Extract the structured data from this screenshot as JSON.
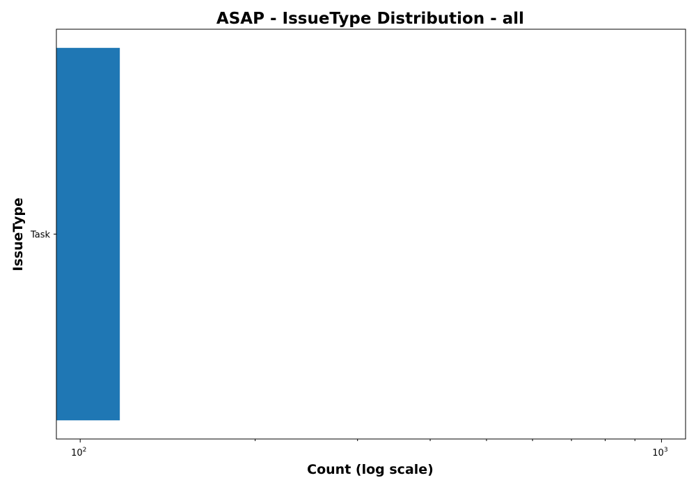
{
  "chart_data": {
    "type": "bar",
    "orientation": "horizontal",
    "title": "ASAP - IssueType Distribution - all",
    "xlabel": "Count (log scale)",
    "ylabel": "IssueType",
    "x_scale": "log",
    "xlim": [
      91,
      1100
    ],
    "categories": [
      "Task"
    ],
    "values": [
      117
    ],
    "bar_color": "#1f77b4",
    "grid": false,
    "legend": "none",
    "x_major_ticks": [
      {
        "value": 100,
        "base": "10",
        "exp": "2"
      },
      {
        "value": 1000,
        "base": "10",
        "exp": "3"
      }
    ]
  }
}
